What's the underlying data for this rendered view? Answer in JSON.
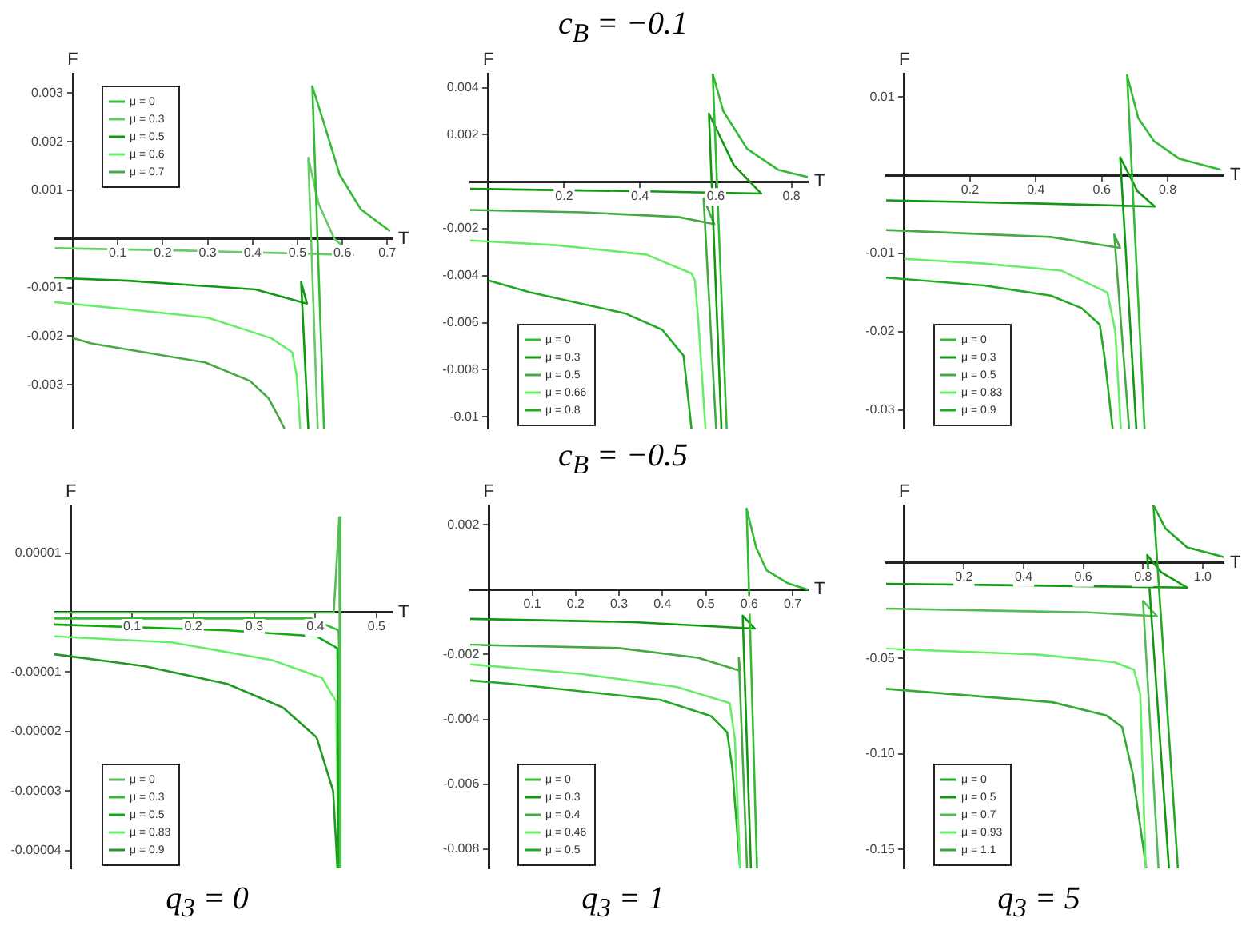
{
  "chart_data": [
    {
      "type": "line",
      "xlabel": "T",
      "ylabel": "F",
      "xlim": [
        -0.041,
        0.71
      ],
      "ylim": [
        -0.0039,
        0.0034
      ],
      "xticks": [
        0.1,
        0.2,
        0.3,
        0.4,
        0.5,
        0.6,
        0.7
      ],
      "yticks": [
        -0.003,
        -0.002,
        -0.001,
        0.001,
        0.002,
        0.003
      ],
      "legend": "top left",
      "marker": "none",
      "series": [
        {
          "name": "μ = 0",
          "color": "#33bb33",
          "x": [
            0.559,
            0.533,
            0.559,
            0.594,
            0.641,
            0.706
          ],
          "values": [
            -0.0039,
            0.00314,
            0.00238,
            0.00132,
            0.00061,
            0.00016
          ]
        },
        {
          "name": "μ = 0.3",
          "color": "#66cc66",
          "x": [
            -0.04,
            0.25,
            0.624,
            0.582,
            0.547,
            0.524,
            0.545
          ],
          "values": [
            -0.00019,
            -0.00024,
            -0.00033,
            0,
            0.00073,
            0.00167,
            -0.0039
          ]
        },
        {
          "name": "μ = 0.5",
          "color": "#119911",
          "x": [
            -0.041,
            0.124,
            0.406,
            0.521,
            0.508,
            0.524
          ],
          "values": [
            -0.0008,
            -0.00086,
            -0.00104,
            -0.00133,
            -0.00089,
            -0.0039
          ]
        },
        {
          "name": "μ = 0.6",
          "color": "#66ee66",
          "x": [
            -0.041,
            0.124,
            0.3,
            0.441,
            0.488,
            0.498,
            0.506
          ],
          "values": [
            -0.0013,
            -0.00145,
            -0.00162,
            -0.00204,
            -0.00233,
            -0.0028,
            -0.0039
          ]
        },
        {
          "name": "μ = 0.7",
          "color": "#44aa44",
          "x": [
            0,
            0.041,
            0.294,
            0.394,
            0.435,
            0.459,
            0.471
          ],
          "values": [
            -0.00204,
            -0.00215,
            -0.00254,
            -0.00292,
            -0.00327,
            -0.00368,
            -0.0039
          ]
        }
      ]
    },
    {
      "type": "line",
      "title": "c$_{B}$ = −0.1",
      "xlabel": "T",
      "ylabel": "F",
      "xlim": [
        -0.048,
        0.843
      ],
      "ylim": [
        -0.0105,
        0.0046
      ],
      "xticks": [
        0.2,
        0.4,
        0.6,
        0.8
      ],
      "yticks": [
        -0.01,
        -0.008,
        -0.006,
        -0.004,
        -0.002,
        0.002,
        0.004
      ],
      "legend": "bottom left",
      "marker": "none",
      "series": [
        {
          "name": "μ = 0",
          "color": "#33bb33",
          "x": [
            0.629,
            0.592,
            0.62,
            0.683,
            0.766,
            0.843
          ],
          "values": [
            -0.0105,
            0.0046,
            0.003,
            0.0014,
            0.0005,
            0.0002
          ]
        },
        {
          "name": "μ = 0.3",
          "color": "#119911",
          "x": [
            -0.048,
            0.389,
            0.72,
            0.648,
            0.582,
            0.615
          ],
          "values": [
            -0.0003,
            -0.0004,
            -0.0005,
            0.0007,
            0.0029,
            -0.0105
          ]
        },
        {
          "name": "μ = 0.5",
          "color": "#44aa44",
          "x": [
            -0.048,
            0.249,
            0.501,
            0.596,
            0.568,
            0.601
          ],
          "values": [
            -0.0012,
            -0.0013,
            -0.0015,
            -0.0018,
            -0.0007,
            -0.0105
          ]
        },
        {
          "name": "μ = 0.66",
          "color": "#66ee66",
          "x": [
            -0.048,
            0.179,
            0.417,
            0.536,
            0.545,
            0.554,
            0.573
          ],
          "values": [
            -0.0025,
            -0.0027,
            -0.0031,
            -0.0039,
            -0.0042,
            -0.0059,
            -0.0105
          ]
        },
        {
          "name": "μ = 0.8",
          "color": "#22aa22",
          "x": [
            0,
            0.109,
            0.361,
            0.459,
            0.515,
            0.536
          ],
          "values": [
            -0.0042,
            -0.0047,
            -0.0056,
            -0.0063,
            -0.0074,
            -0.0105
          ]
        }
      ]
    },
    {
      "type": "line",
      "xlabel": "T",
      "ylabel": "F",
      "xlim": [
        -0.055,
        0.97
      ],
      "ylim": [
        -0.0324,
        0.013
      ],
      "xticks": [
        0.2,
        0.4,
        0.6,
        0.8
      ],
      "yticks": [
        -0.03,
        -0.02,
        -0.01,
        0.01
      ],
      "legend": "bottom left",
      "marker": "none",
      "series": [
        {
          "name": "μ = 0",
          "color": "#33bb33",
          "x": [
            0.73,
            0.677,
            0.711,
            0.758,
            0.836,
            0.961
          ],
          "values": [
            -0.0324,
            0.0128,
            0.0073,
            0.0044,
            0.0021,
            0.0007
          ]
        },
        {
          "name": "μ = 0.3",
          "color": "#119911",
          "x": [
            -0.055,
            0.398,
            0.761,
            0.708,
            0.656,
            0.705
          ],
          "values": [
            -0.0032,
            -0.0036,
            -0.004,
            -0.002,
            0.0023,
            -0.0324
          ]
        },
        {
          "name": "μ = 0.5",
          "color": "#44aa44",
          "x": [
            -0.055,
            0.445,
            0.656,
            0.638,
            0.683
          ],
          "values": [
            -0.007,
            -0.0079,
            -0.0093,
            -0.0076,
            -0.0324
          ]
        },
        {
          "name": "μ = 0.83",
          "color": "#66ee66",
          "x": [
            0,
            0.242,
            0.477,
            0.617,
            0.641,
            0.658
          ],
          "values": [
            -0.0107,
            -0.0113,
            -0.0122,
            -0.015,
            -0.0199,
            -0.0324
          ]
        },
        {
          "name": "μ = 0.9",
          "color": "#22aa22",
          "x": [
            -0.055,
            0.242,
            0.445,
            0.539,
            0.594,
            0.609,
            0.633
          ],
          "values": [
            -0.0131,
            -0.0141,
            -0.0154,
            -0.017,
            -0.0191,
            -0.0234,
            -0.0324
          ]
        }
      ]
    },
    {
      "type": "line",
      "xlabel": "T",
      "ylabel": "F",
      "annotations": [
        "q$_{3}$ = 0"
      ],
      "xlim": [
        -0.027,
        0.525
      ],
      "ylim": [
        -4.3e-05,
        1.8e-05
      ],
      "xticks": [
        0.1,
        0.2,
        0.3,
        0.4,
        0.5
      ],
      "yticks": [
        {
          "value": -4e-05,
          "label": "-0.00004"
        },
        {
          "value": -3e-05,
          "label": "-0.00003"
        },
        {
          "value": -2e-05,
          "label": "-0.00002"
        },
        {
          "value": -1e-05,
          "label": "-0.00001"
        },
        {
          "value": 1e-05,
          "label": "0.00001"
        }
      ],
      "legend": "bottom left",
      "marker": "none",
      "series": [
        {
          "name": "μ = 0",
          "color": "#55bb55",
          "x": [
            -0.027,
            0.43,
            0.439,
            0.441
          ],
          "values": [
            0,
            0,
            1.6e-05,
            -4.3e-05
          ]
        },
        {
          "name": "μ = 0.3",
          "color": "#33bb33",
          "x": [
            -0.027,
            0.256,
            0.393,
            0.438,
            0.439,
            0.441
          ],
          "values": [
            -1e-06,
            -1e-06,
            -1e-06,
            -3e-06,
            -7e-06,
            -4.3e-05
          ]
        },
        {
          "name": "μ = 0.5",
          "color": "#11aa11",
          "x": [
            -0.027,
            0.256,
            0.402,
            0.436,
            0.438
          ],
          "values": [
            -2e-06,
            -3e-06,
            -4e-06,
            -6e-06,
            -4.3e-05
          ]
        },
        {
          "name": "μ = 0.83",
          "color": "#66ee66",
          "x": [
            -0.027,
            0.165,
            0.329,
            0.411,
            0.434,
            0.438
          ],
          "values": [
            -4e-06,
            -5e-06,
            -8e-06,
            -1.1e-05,
            -1.5e-05,
            -4.3e-05
          ]
        },
        {
          "name": "μ = 0.9",
          "color": "#229922",
          "x": [
            -0.027,
            0.12,
            0.256,
            0.347,
            0.402,
            0.429,
            0.436
          ],
          "values": [
            -7e-06,
            -9e-06,
            -1.2e-05,
            -1.6e-05,
            -2.1e-05,
            -3e-05,
            -4.3e-05
          ]
        }
      ]
    },
    {
      "type": "line",
      "title": "c$_{B}$ = −0.5",
      "xlabel": "T",
      "ylabel": "F",
      "annotations": [
        "q$_{3}$ = 1"
      ],
      "xlim": [
        -0.043,
        0.735
      ],
      "ylim": [
        -0.0086,
        0.0026
      ],
      "xticks": [
        0.1,
        0.2,
        0.3,
        0.4,
        0.5,
        0.6,
        0.7
      ],
      "yticks": [
        -0.008,
        -0.006,
        -0.004,
        -0.002,
        0.002
      ],
      "legend": "bottom left",
      "marker": "none",
      "series": [
        {
          "name": "μ = 0",
          "color": "#33bb33",
          "x": [
            0.618,
            0.594,
            0.616,
            0.64,
            0.689,
            0.735
          ],
          "values": [
            -0.0086,
            0.0025,
            0.0013,
            0.0006,
            0.0002,
            0
          ]
        },
        {
          "name": "μ = 0.3",
          "color": "#119911",
          "x": [
            -0.043,
            0.335,
            0.613,
            0.585,
            0.604
          ],
          "values": [
            -0.0009,
            -0.001,
            -0.0012,
            -0.0008,
            -0.0086
          ]
        },
        {
          "name": "μ = 0.4",
          "color": "#44aa44",
          "x": [
            -0.043,
            0.299,
            0.482,
            0.579,
            0.576,
            0.595
          ],
          "values": [
            -0.0017,
            -0.0018,
            -0.0021,
            -0.0025,
            -0.0021,
            -0.0086
          ]
        },
        {
          "name": "μ = 0.46",
          "color": "#66ee66",
          "x": [
            -0.043,
            0.213,
            0.433,
            0.555,
            0.567,
            0.579
          ],
          "values": [
            -0.0023,
            -0.0026,
            -0.003,
            -0.0035,
            -0.0046,
            -0.0086
          ]
        },
        {
          "name": "μ = 0.5",
          "color": "#22aa22",
          "x": [
            -0.043,
            0.049,
            0.396,
            0.512,
            0.549,
            0.561,
            0.579
          ],
          "values": [
            -0.0028,
            -0.0029,
            -0.0034,
            -0.0039,
            -0.0044,
            -0.0055,
            -0.0086
          ]
        }
      ]
    },
    {
      "type": "line",
      "xlabel": "T",
      "ylabel": "F",
      "annotations": [
        "q$_{3}$ = 5"
      ],
      "xlim": [
        -0.061,
        1.07
      ],
      "ylim": [
        -0.16,
        0.03
      ],
      "xticks": [
        0.2,
        0.4,
        0.6,
        0.8,
        {
          "value": 1,
          "label": "1.0"
        }
      ],
      "yticks": [
        -0.15,
        {
          "value": -0.1,
          "label": "-0.10"
        },
        -0.05
      ],
      "legend": "bottom left",
      "marker": "none",
      "series": [
        {
          "name": "μ = 0",
          "color": "#22aa22",
          "x": [
            0.917,
            0.835,
            0.875,
            0.948,
            1.07
          ],
          "values": [
            -0.16,
            0.03,
            0.018,
            0.008,
            0.003
          ]
        },
        {
          "name": "μ = 0.5",
          "color": "#119911",
          "x": [
            -0.061,
            0.478,
            0.948,
            0.861,
            0.814,
            0.887
          ],
          "values": [
            -0.011,
            -0.012,
            -0.013,
            -0.005,
            0.004,
            -0.16
          ]
        },
        {
          "name": "μ = 0.7",
          "color": "#55bb55",
          "x": [
            -0.061,
            0.617,
            0.847,
            0.8,
            0.852
          ],
          "values": [
            -0.024,
            -0.026,
            -0.028,
            -0.02,
            -0.16
          ]
        },
        {
          "name": "μ = 0.93",
          "color": "#66ee66",
          "x": [
            -0.061,
            0.443,
            0.704,
            0.77,
            0.791,
            0.809
          ],
          "values": [
            -0.045,
            -0.048,
            -0.052,
            -0.056,
            -0.069,
            -0.16
          ]
        },
        {
          "name": "μ = 1.1",
          "color": "#33aa33",
          "x": [
            -0.061,
            0.496,
            0.678,
            0.73,
            0.765,
            0.811
          ],
          "values": [
            -0.066,
            -0.073,
            -0.08,
            -0.086,
            -0.11,
            -0.16
          ]
        }
      ]
    }
  ]
}
